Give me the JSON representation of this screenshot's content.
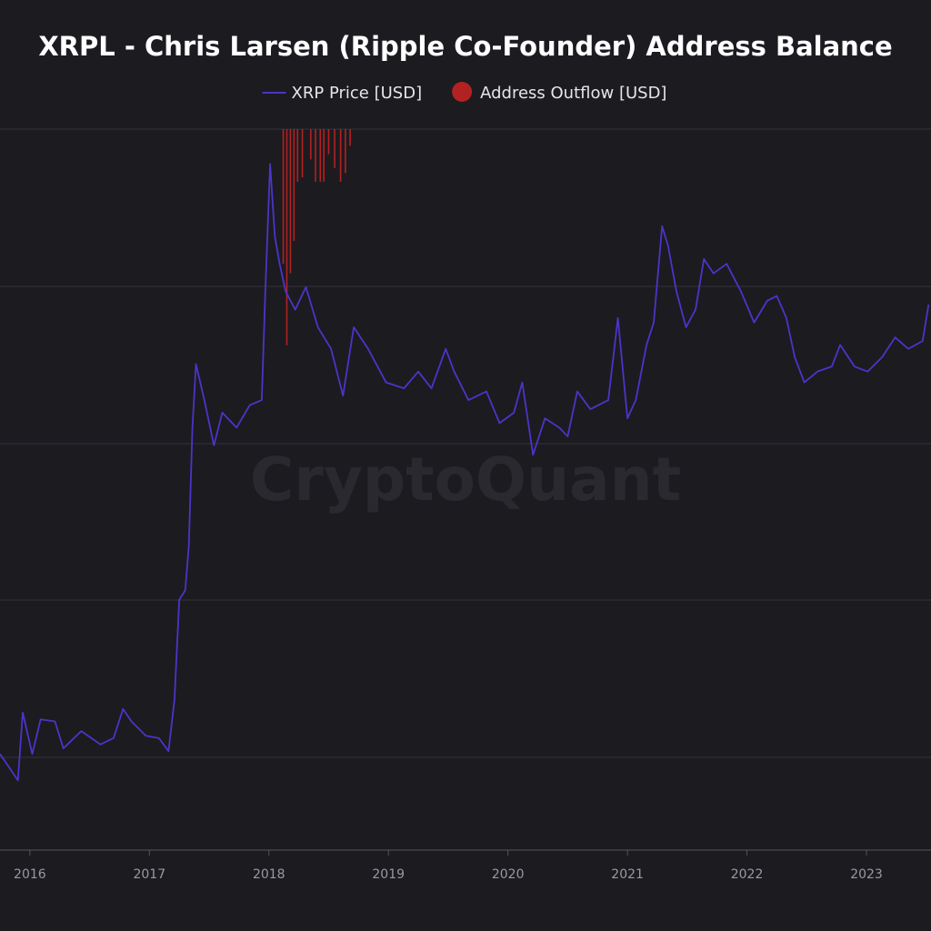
{
  "chart_data": {
    "type": "line",
    "title": "XRPL - Chris Larsen (Ripple Co-Founder) Address Balance",
    "watermark": "CryptoQuant",
    "legend": "top",
    "ylog": true,
    "xlim": [
      2015.75,
      2023.54
    ],
    "xticks": [
      2016,
      2017,
      2018,
      2019,
      2020,
      2021,
      2022,
      2023
    ],
    "ylim": [
      0.0024,
      4.75
    ],
    "y2lim": [
      0,
      100
    ],
    "y2_inverted": true,
    "series": [
      {
        "name": "XRP Price [USD]",
        "color": "#4a35c8",
        "type": "line",
        "x": [
          2015.75,
          2015.83,
          2015.9,
          2015.94,
          2016.02,
          2016.09,
          2016.21,
          2016.28,
          2016.43,
          2016.59,
          2016.7,
          2016.78,
          2016.85,
          2016.97,
          2017.08,
          2017.16,
          2017.21,
          2017.25,
          2017.3,
          2017.33,
          2017.36,
          2017.39,
          2017.46,
          2017.54,
          2017.61,
          2017.73,
          2017.84,
          2017.94,
          2017.97,
          2018.01,
          2018.05,
          2018.09,
          2018.14,
          2018.22,
          2018.31,
          2018.41,
          2018.52,
          2018.62,
          2018.71,
          2018.83,
          2018.98,
          2019.13,
          2019.25,
          2019.36,
          2019.48,
          2019.55,
          2019.67,
          2019.82,
          2019.93,
          2020.05,
          2020.12,
          2020.21,
          2020.31,
          2020.43,
          2020.5,
          2020.58,
          2020.69,
          2020.84,
          2020.92,
          2021.0,
          2021.07,
          2021.16,
          2021.22,
          2021.29,
          2021.34,
          2021.41,
          2021.49,
          2021.57,
          2021.64,
          2021.72,
          2021.83,
          2021.95,
          2022.06,
          2022.17,
          2022.25,
          2022.33,
          2022.4,
          2022.48,
          2022.59,
          2022.71,
          2022.78,
          2022.9,
          2023.01,
          2023.13,
          2023.24,
          2023.35,
          2023.47,
          2023.52
        ],
        "values": [
          0.0066,
          0.0057,
          0.005,
          0.0102,
          0.0066,
          0.0095,
          0.0093,
          0.007,
          0.0084,
          0.0073,
          0.0078,
          0.0106,
          0.0093,
          0.008,
          0.0078,
          0.0068,
          0.0117,
          0.0335,
          0.037,
          0.059,
          0.205,
          0.4,
          0.274,
          0.17,
          0.24,
          0.205,
          0.26,
          0.274,
          0.86,
          3.29,
          1.53,
          1.15,
          0.86,
          0.71,
          0.9,
          0.59,
          0.47,
          0.287,
          0.59,
          0.47,
          0.33,
          0.31,
          0.37,
          0.31,
          0.47,
          0.37,
          0.274,
          0.3,
          0.215,
          0.24,
          0.33,
          0.154,
          0.226,
          0.205,
          0.187,
          0.3,
          0.249,
          0.274,
          0.65,
          0.226,
          0.274,
          0.49,
          0.62,
          1.71,
          1.39,
          0.86,
          0.59,
          0.71,
          1.21,
          1.04,
          1.15,
          0.86,
          0.62,
          0.78,
          0.82,
          0.65,
          0.43,
          0.33,
          0.37,
          0.39,
          0.49,
          0.39,
          0.37,
          0.43,
          0.53,
          0.47,
          0.51,
          0.75
        ]
      },
      {
        "name": "Address Outflow [USD]",
        "color": "#b22222",
        "type": "bar",
        "axis": "y2",
        "x": [
          2018.12,
          2018.15,
          2018.18,
          2018.21,
          2018.24,
          2018.28,
          2018.35,
          2018.39,
          2018.43,
          2018.46,
          2018.5,
          2018.55,
          2018.6,
          2018.64,
          2018.68
        ],
        "values": [
          18.7,
          30,
          20,
          15.5,
          7.3,
          6.7,
          4.2,
          7.3,
          7.3,
          7.3,
          3.5,
          5.4,
          7.3,
          6.1,
          2.3
        ]
      }
    ]
  }
}
